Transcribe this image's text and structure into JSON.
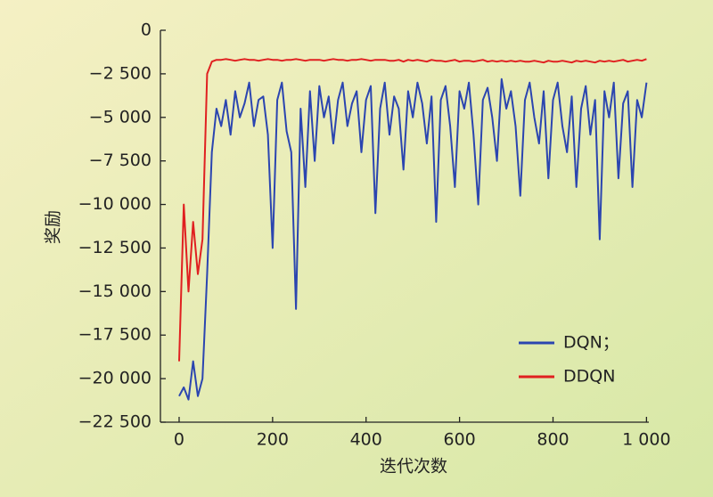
{
  "chart_data": {
    "type": "line",
    "xlabel": "迭代次数",
    "ylabel": "奖励",
    "x": [
      0,
      10,
      20,
      30,
      40,
      50,
      60,
      70,
      80,
      90,
      100,
      110,
      120,
      130,
      140,
      150,
      160,
      170,
      180,
      190,
      200,
      210,
      220,
      230,
      240,
      250,
      260,
      270,
      280,
      290,
      300,
      310,
      320,
      330,
      340,
      350,
      360,
      370,
      380,
      390,
      400,
      410,
      420,
      430,
      440,
      450,
      460,
      470,
      480,
      490,
      500,
      510,
      520,
      530,
      540,
      550,
      560,
      570,
      580,
      590,
      600,
      610,
      620,
      630,
      640,
      650,
      660,
      670,
      680,
      690,
      700,
      710,
      720,
      730,
      740,
      750,
      760,
      770,
      780,
      790,
      800,
      810,
      820,
      830,
      840,
      850,
      860,
      870,
      880,
      890,
      900,
      910,
      920,
      930,
      940,
      950,
      960,
      970,
      980,
      990,
      1000
    ],
    "series": [
      {
        "name": "DQN；",
        "color": "#2b45b0",
        "values": [
          -21000,
          -20500,
          -21200,
          -19000,
          -21000,
          -20000,
          -14000,
          -7000,
          -4500,
          -5500,
          -4000,
          -6000,
          -3500,
          -5000,
          -4200,
          -3000,
          -5500,
          -4000,
          -3800,
          -6000,
          -12500,
          -4000,
          -3000,
          -5800,
          -7000,
          -16000,
          -4500,
          -9000,
          -3500,
          -7500,
          -3200,
          -5000,
          -3800,
          -6500,
          -4000,
          -3000,
          -5500,
          -4200,
          -3500,
          -7000,
          -4000,
          -3200,
          -10500,
          -4500,
          -3000,
          -6000,
          -3800,
          -4500,
          -8000,
          -3500,
          -5000,
          -3000,
          -4200,
          -6500,
          -3800,
          -11000,
          -4000,
          -3200,
          -5500,
          -9000,
          -3500,
          -4500,
          -3000,
          -6000,
          -10000,
          -4000,
          -3300,
          -5000,
          -7500,
          -2800,
          -4500,
          -3500,
          -5500,
          -9500,
          -4000,
          -3000,
          -5000,
          -6500,
          -3500,
          -8500,
          -4000,
          -3000,
          -5500,
          -7000,
          -3800,
          -9000,
          -4500,
          -3200,
          -6000,
          -4000,
          -12000,
          -3500,
          -5000,
          -3000,
          -8500,
          -4200,
          -3500,
          -9000,
          -4000,
          -5000,
          -3000
        ]
      },
      {
        "name": "DDQN",
        "color": "#e02020",
        "values": [
          -19000,
          -10000,
          -15000,
          -11000,
          -14000,
          -12000,
          -2500,
          -1800,
          -1700,
          -1700,
          -1650,
          -1700,
          -1750,
          -1700,
          -1650,
          -1700,
          -1700,
          -1750,
          -1700,
          -1650,
          -1700,
          -1700,
          -1750,
          -1700,
          -1700,
          -1650,
          -1700,
          -1750,
          -1700,
          -1700,
          -1700,
          -1750,
          -1700,
          -1650,
          -1700,
          -1700,
          -1750,
          -1700,
          -1700,
          -1650,
          -1700,
          -1750,
          -1700,
          -1700,
          -1700,
          -1750,
          -1750,
          -1700,
          -1800,
          -1700,
          -1750,
          -1700,
          -1750,
          -1800,
          -1700,
          -1750,
          -1750,
          -1800,
          -1750,
          -1700,
          -1800,
          -1750,
          -1750,
          -1800,
          -1750,
          -1700,
          -1800,
          -1750,
          -1800,
          -1750,
          -1800,
          -1750,
          -1800,
          -1750,
          -1800,
          -1800,
          -1750,
          -1800,
          -1850,
          -1750,
          -1800,
          -1800,
          -1750,
          -1800,
          -1850,
          -1750,
          -1800,
          -1750,
          -1800,
          -1850,
          -1750,
          -1800,
          -1750,
          -1800,
          -1750,
          -1700,
          -1800,
          -1750,
          -1700,
          -1750,
          -1650
        ]
      }
    ],
    "xlim": [
      -40,
      1005
    ],
    "ylim": [
      -22500,
      0
    ],
    "xticks": [
      0,
      200,
      400,
      600,
      800,
      {
        "value": 1000,
        "label": "1 000"
      }
    ],
    "yticks": [
      0,
      {
        "value": -2500,
        "label": "−2 500"
      },
      {
        "value": -5000,
        "label": "−5 000"
      },
      {
        "value": -7500,
        "label": "−7 500"
      },
      {
        "value": -10000,
        "label": "−10 000"
      },
      {
        "value": -12500,
        "label": "−12 500"
      },
      {
        "value": -15000,
        "label": "−15 000"
      },
      {
        "value": -17500,
        "label": "−17 500"
      },
      {
        "value": -20000,
        "label": "−20 000"
      },
      {
        "value": -22500,
        "label": "−22 500"
      }
    ],
    "legend": "lower right"
  }
}
